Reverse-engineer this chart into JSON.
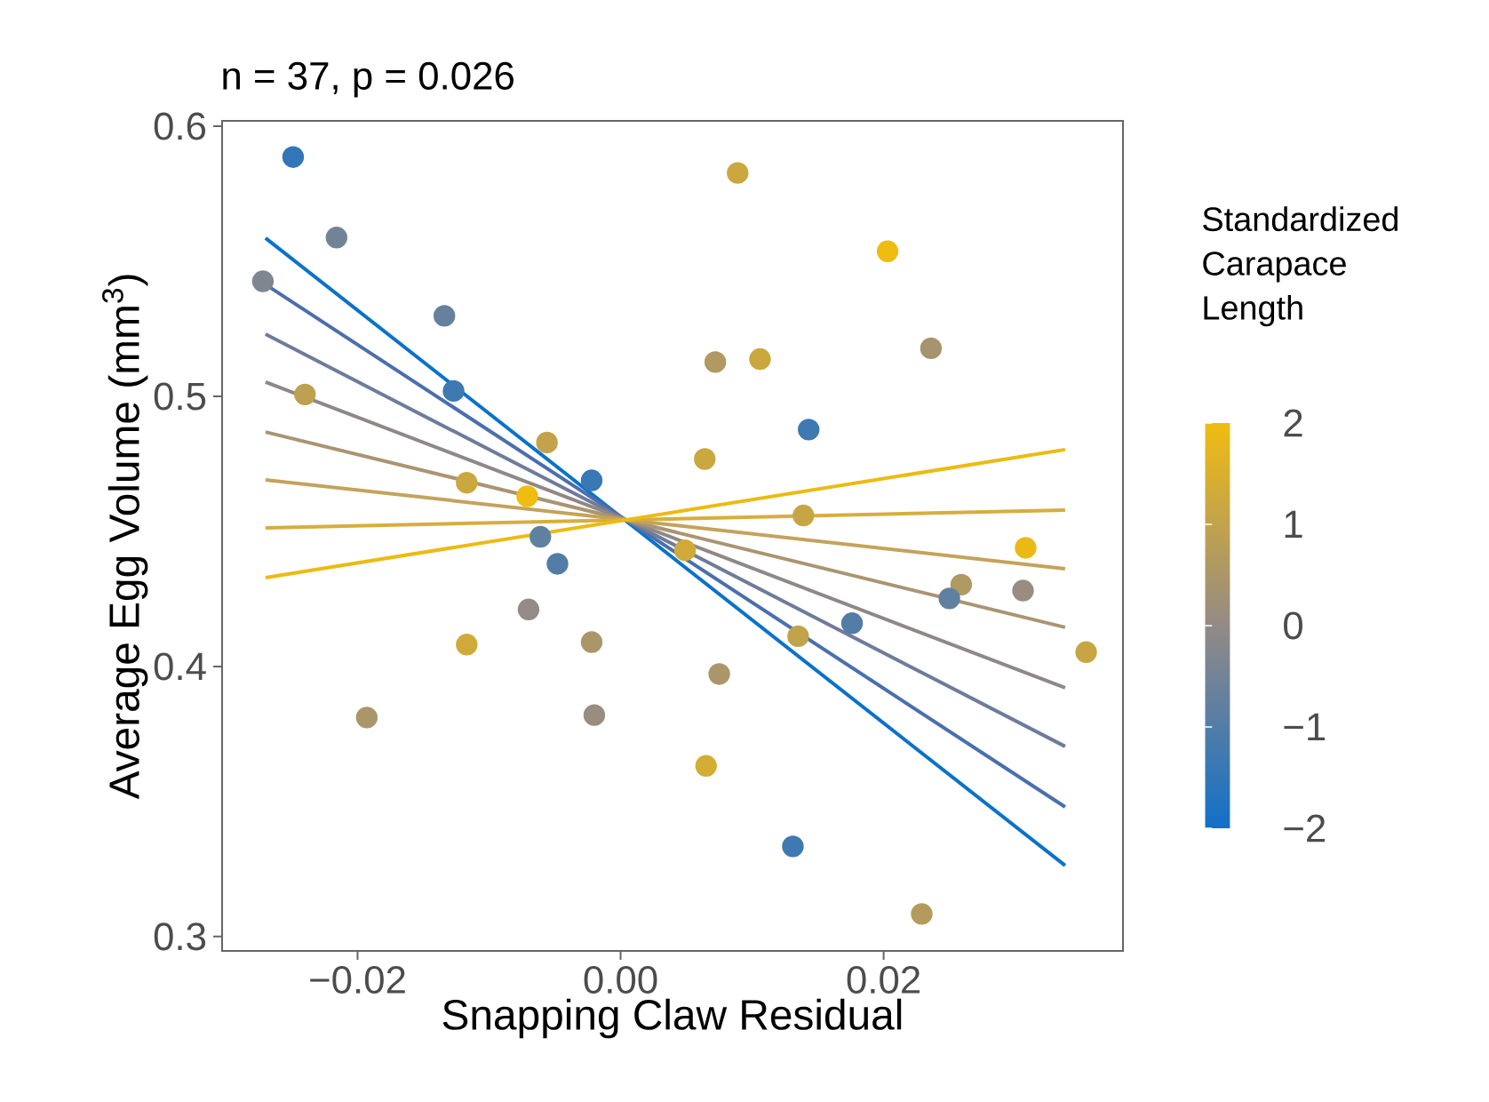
{
  "chart_data": {
    "type": "scatter",
    "title": "n = 37, p = 0.026",
    "xlabel": "Snapping Claw Residual",
    "ylabel": "Average Egg Volume (mm$^{3}$)",
    "clabel": "Standardized Carapace Length",
    "xlim": [
      -0.0303,
      0.0382
    ],
    "ylim": [
      0.2947,
      0.602
    ],
    "xticks": [
      {
        "value": -0.02,
        "label": "−0.02"
      },
      {
        "value": 0,
        "label": "0.00"
      },
      {
        "value": 0.02,
        "label": "0.02"
      }
    ],
    "yticks": [
      0.3,
      0.4,
      0.5,
      0.6
    ],
    "clim": [
      -2,
      2
    ],
    "cticks": [
      {
        "value": -2,
        "label": "−2"
      },
      {
        "value": -1,
        "label": "−1"
      },
      0,
      1,
      2
    ],
    "grid": false,
    "series": [
      {
        "marker": "circle",
        "x": [
          -0.0249,
          -0.0216,
          -0.0272,
          -0.0134,
          -0.024,
          -0.0127,
          -0.0056,
          -0.0022,
          -0.0117,
          -0.0071,
          -0.0061,
          -0.0048,
          -0.007,
          -0.0117,
          -0.0022,
          -0.0193,
          -0.002,
          0.0089,
          0.0203,
          0.0072,
          0.0106,
          0.0236,
          0.0143,
          0.0064,
          0.0139,
          0.0049,
          0.0308,
          0.0259,
          0.0306,
          0.025,
          0.0176,
          0.0135,
          0.0354,
          0.0075,
          0.0065,
          0.0131,
          0.0229
        ],
        "values": [
          0.5886,
          0.5588,
          0.5426,
          0.5298,
          0.5007,
          0.502,
          0.4829,
          0.4689,
          0.468,
          0.463,
          0.448,
          0.438,
          0.4211,
          0.4081,
          0.409,
          0.3811,
          0.382,
          0.5827,
          0.5537,
          0.5127,
          0.5138,
          0.5178,
          0.4877,
          0.4768,
          0.4559,
          0.443,
          0.4439,
          0.4303,
          0.4281,
          0.4252,
          0.416,
          0.4112,
          0.4053,
          0.3972,
          0.3632,
          0.3334,
          0.3084
        ],
        "colors": [
          "#3277b8",
          "#738497",
          "#808690",
          "#66819d",
          "#bda151",
          "#3f79b1",
          "#c2a34b",
          "#3878b4",
          "#cba83f",
          "#f0bc10",
          "#6080a0",
          "#537da7",
          "#948a86",
          "#d0ab39",
          "#ab9769",
          "#ab9769",
          "#998d80",
          "#cba83f",
          "#f0bc10",
          "#b09963",
          "#cba83f",
          "#a6946e",
          "#3f79b1",
          "#cba83f",
          "#c7a645",
          "#d0ab39",
          "#ebba16",
          "#b09963",
          "#998d80",
          "#6080a0",
          "#537da7",
          "#c2a34b",
          "#c7a645",
          "#ab9769",
          "#d4ad33",
          "#3f79b1",
          "#b49c5d"
        ],
        "cvalues": [
          -1.5,
          -0.5,
          -0.3,
          -0.7,
          0.9,
          -1.3,
          1.0,
          -1.4,
          1.2,
          2.0,
          -0.8,
          -1.0,
          0.0,
          1.3,
          0.5,
          0.5,
          0.1,
          1.2,
          2.0,
          0.6,
          1.2,
          0.4,
          -1.3,
          1.2,
          1.1,
          1.3,
          1.9,
          0.6,
          0.1,
          -0.8,
          -1.0,
          1.0,
          1.1,
          0.5,
          1.4,
          -1.3,
          0.7
        ]
      },
      {
        "type": "line",
        "color": "#0a72c8",
        "x": [
          -0.027,
          0.0338
        ],
        "values": [
          0.5586,
          0.3263
        ]
      },
      {
        "type": "line",
        "color": "#4b6fad",
        "x": [
          -0.027,
          0.0338
        ],
        "values": [
          0.5414,
          0.348
        ]
      },
      {
        "type": "line",
        "color": "#6f7b9a",
        "x": [
          -0.027,
          0.0338
        ],
        "values": [
          0.523,
          0.3704
        ]
      },
      {
        "type": "line",
        "color": "#8e8886",
        "x": [
          -0.027,
          0.0338
        ],
        "values": [
          0.5053,
          0.3921
        ]
      },
      {
        "type": "line",
        "color": "#a99573",
        "x": [
          -0.027,
          0.0338
        ],
        "values": [
          0.4868,
          0.4145
        ]
      },
      {
        "type": "line",
        "color": "#c3a35c",
        "x": [
          -0.027,
          0.0338
        ],
        "values": [
          0.4691,
          0.4362
        ]
      },
      {
        "type": "line",
        "color": "#d7ad3e",
        "x": [
          -0.027,
          0.0338
        ],
        "values": [
          0.4513,
          0.4579
        ]
      },
      {
        "type": "line",
        "color": "#ecbb12",
        "x": [
          -0.027,
          0.0338
        ],
        "values": [
          0.4329,
          0.4803
        ]
      }
    ]
  }
}
